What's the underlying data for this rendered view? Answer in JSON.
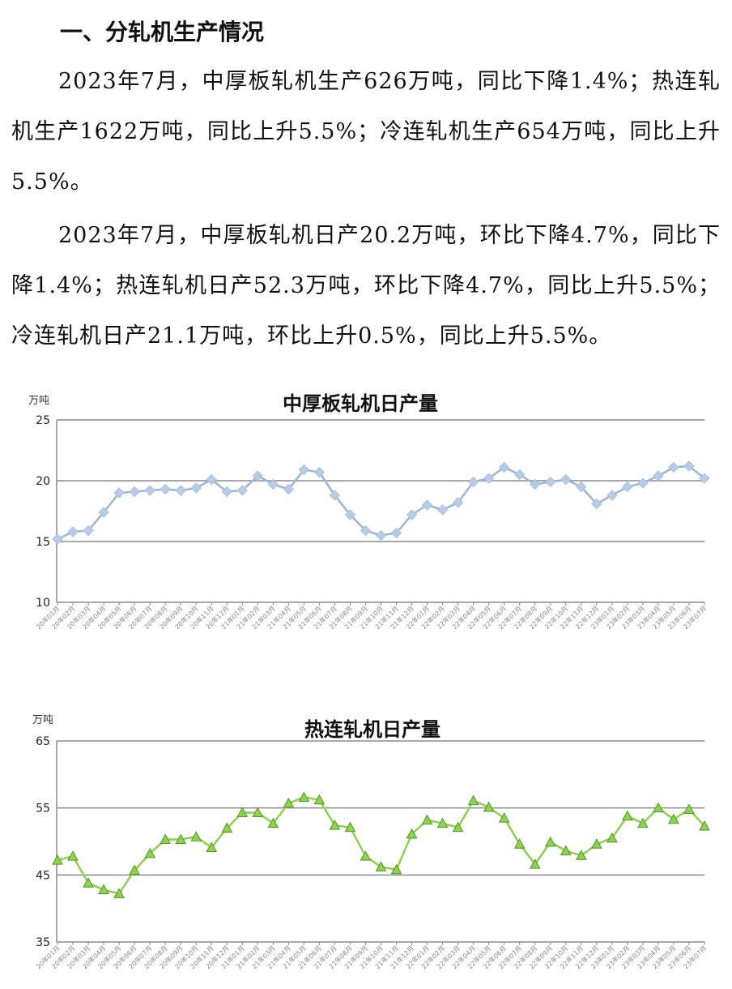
{
  "heading": "一、分轧机生产情况",
  "paragraphs": [
    "2023年7月，中厚板轧机生产626万吨，同比下降1.4%；热连轧机生产1622万吨，同比上升5.5%；冷连轧机生产654万吨，同比上升5.5%。",
    "2023年7月，中厚板轧机日产20.2万吨，环比下降4.7%，同比下降1.4%；热连轧机日产52.3万吨，环比下降4.7%，同比上升5.5%；冷连轧机日产21.1万吨，环比上升0.5%，同比上升5.5%。"
  ],
  "chart_data": [
    {
      "type": "line",
      "title": "中厚板轧机日产量",
      "unit_label": "万吨",
      "ylim": [
        10,
        25
      ],
      "yticks": [
        10,
        15,
        20,
        25
      ],
      "grid": true,
      "color": "#9ab5db",
      "marker": "diamond",
      "categories": [
        "20年01月",
        "20年02月",
        "20年03月",
        "20年04月",
        "20年05月",
        "20年06月",
        "20年07月",
        "20年08月",
        "20年09月",
        "20年10月",
        "20年11月",
        "20年12月",
        "21年01月",
        "21年02月",
        "21年03月",
        "21年04月",
        "21年05月",
        "21年06月",
        "21年07月",
        "21年08月",
        "21年09月",
        "21年10月",
        "21年11月",
        "21年12月",
        "22年01月",
        "22年02月",
        "22年03月",
        "22年04月",
        "22年05月",
        "22年06月",
        "22年07月",
        "22年08月",
        "22年09月",
        "22年10月",
        "22年11月",
        "22年12月",
        "23年01月",
        "23年02月",
        "23年03月",
        "23年04月",
        "23年05月",
        "23年06月",
        "23年07月"
      ],
      "values": [
        15.2,
        15.8,
        15.9,
        17.4,
        19.0,
        19.1,
        19.2,
        19.3,
        19.2,
        19.4,
        20.1,
        19.1,
        19.2,
        20.4,
        19.7,
        19.3,
        20.9,
        20.7,
        18.8,
        17.2,
        15.9,
        15.5,
        15.7,
        17.2,
        18.0,
        17.6,
        18.2,
        19.9,
        20.2,
        21.1,
        20.5,
        19.7,
        19.9,
        20.1,
        19.5,
        18.1,
        18.8,
        19.5,
        19.8,
        20.4,
        21.1,
        21.2,
        20.2
      ]
    },
    {
      "type": "line",
      "title": "热连轧机日产量",
      "unit_label": "万吨",
      "ylim": [
        35,
        65
      ],
      "yticks": [
        35,
        45,
        55,
        65
      ],
      "grid": true,
      "color": "#8fd14f",
      "marker": "triangle",
      "categories": [
        "20年01月",
        "20年02月",
        "20年03月",
        "20年04月",
        "20年05月",
        "20年06月",
        "20年07月",
        "20年08月",
        "20年09月",
        "20年10月",
        "20年11月",
        "20年12月",
        "21年01月",
        "21年02月",
        "21年03月",
        "21年04月",
        "21年05月",
        "21年06月",
        "21年07月",
        "21年08月",
        "21年09月",
        "21年10月",
        "21年11月",
        "21年12月",
        "22年01月",
        "22年02月",
        "22年03月",
        "22年04月",
        "22年05月",
        "22年06月",
        "22年07月",
        "22年08月",
        "22年09月",
        "22年10月",
        "22年11月",
        "22年12月",
        "23年01月",
        "23年02月",
        "23年03月",
        "23年04月",
        "23年05月",
        "23年06月",
        "23年07月"
      ],
      "values": [
        47.2,
        47.8,
        43.8,
        42.8,
        42.2,
        45.7,
        48.2,
        50.3,
        50.3,
        50.7,
        49.1,
        52.0,
        54.3,
        54.3,
        52.7,
        55.7,
        56.6,
        56.2,
        52.4,
        52.1,
        47.8,
        46.2,
        45.8,
        51.1,
        53.2,
        52.7,
        52.1,
        56.1,
        55.1,
        53.5,
        49.6,
        46.6,
        49.9,
        48.6,
        47.9,
        49.6,
        50.5,
        53.8,
        52.7,
        55.0,
        53.3,
        54.8,
        52.3
      ]
    }
  ]
}
